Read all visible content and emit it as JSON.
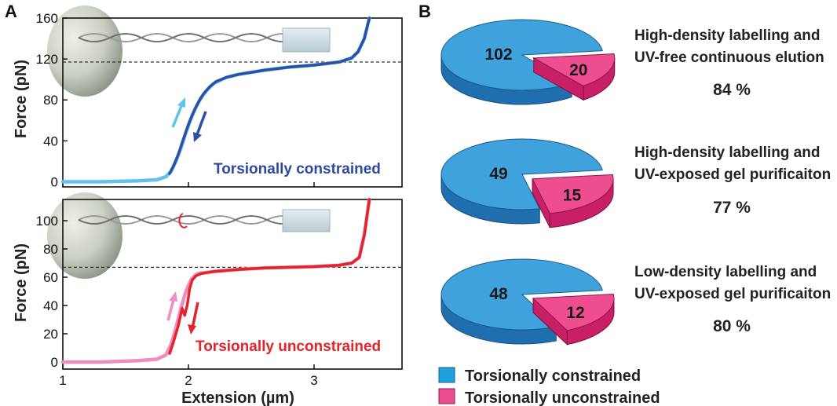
{
  "panel_labels": {
    "a": "A",
    "b": "B"
  },
  "colors": {
    "constrained_pull": "#5ec3ee",
    "constrained_relax": "#2e4fa6",
    "unconstrained_pull": "#f08cc0",
    "unconstrained_relax": "#e3242b",
    "pie_blue_top": "#3fa2dc",
    "pie_blue_side": "#1f6fae",
    "pie_pink_top": "#ee4d90",
    "pie_pink_side": "#c81f66",
    "constrained_text": "#2c4a9e",
    "unconstrained_text": "#e3242b"
  },
  "chart_data": [
    {
      "type": "line",
      "panel": "A-top",
      "xlabel": "",
      "ylabel": "Force (pN)",
      "xlim": [
        1,
        3.7
      ],
      "ylim": [
        -5,
        160
      ],
      "yticks": [
        "0",
        "40",
        "80",
        "120",
        "160"
      ],
      "reference_line_y": 117,
      "annotation": "Torsionally constrained",
      "series": [
        {
          "role": "pull",
          "x": [
            1.0,
            1.3,
            1.6,
            1.75,
            1.82,
            1.86,
            1.9,
            1.94,
            1.98,
            2.02,
            2.06,
            2.1,
            2.15,
            2.2,
            2.3,
            2.4,
            2.6,
            2.8,
            3.0,
            3.2,
            3.3,
            3.35,
            3.4,
            3.44
          ],
          "y": [
            0,
            0,
            1,
            2,
            5,
            10,
            20,
            33,
            48,
            62,
            73,
            82,
            90,
            96,
            102,
            105,
            109,
            112,
            114,
            117,
            121,
            127,
            140,
            160
          ]
        },
        {
          "role": "relax",
          "x": [
            1.85,
            1.88,
            1.92,
            1.96,
            2.0,
            2.04,
            2.08,
            2.12,
            2.17,
            2.22,
            2.3,
            2.4,
            2.6,
            2.8,
            3.0,
            3.2,
            3.3,
            3.35,
            3.4,
            3.44
          ],
          "y": [
            8,
            15,
            27,
            42,
            56,
            68,
            78,
            86,
            93,
            98,
            102,
            105,
            109,
            112,
            114,
            117,
            121,
            127,
            140,
            160
          ]
        }
      ]
    },
    {
      "type": "line",
      "panel": "A-bottom",
      "xlabel": "Extension (µm)",
      "ylabel": "Force (pN)",
      "xlim": [
        1,
        3.7
      ],
      "ylim": [
        -5,
        115
      ],
      "xticks": [
        "1",
        "2",
        "3"
      ],
      "yticks": [
        "0",
        "20",
        "40",
        "60",
        "80",
        "100"
      ],
      "reference_line_y": 67,
      "annotation": "Torsionally unconstrained",
      "series": [
        {
          "role": "pull",
          "x": [
            1.0,
            1.3,
            1.6,
            1.75,
            1.82,
            1.86,
            1.9,
            1.94,
            1.98,
            2.02,
            2.06,
            2.1,
            2.2,
            2.4,
            2.6,
            2.8,
            3.0,
            3.2,
            3.3,
            3.36,
            3.4,
            3.44
          ],
          "y": [
            0,
            0,
            1,
            2,
            5,
            12,
            24,
            38,
            50,
            58,
            62,
            63,
            64,
            65.5,
            66.5,
            67,
            67.5,
            68.5,
            70,
            74,
            90,
            115
          ]
        },
        {
          "role": "relax",
          "x": [
            1.85,
            1.88,
            1.92,
            1.95,
            1.97,
            1.99,
            2.01,
            2.03,
            2.06,
            2.1,
            2.2,
            2.4,
            2.6,
            2.8,
            3.0,
            3.2,
            3.3,
            3.36,
            3.4,
            3.44
          ],
          "y": [
            6,
            14,
            26,
            38,
            33,
            40,
            52,
            58,
            61,
            62.5,
            64,
            65.5,
            66.5,
            67,
            67.5,
            68.5,
            70,
            74,
            90,
            115
          ]
        }
      ]
    },
    {
      "type": "pie",
      "panel": "B-1",
      "categories": [
        "Torsionally constrained",
        "Torsionally unconstrained"
      ],
      "values": [
        102,
        20
      ],
      "title_lines": [
        "High-density labelling and",
        "UV-free continuous elution"
      ],
      "percent_label": "84 %"
    },
    {
      "type": "pie",
      "panel": "B-2",
      "categories": [
        "Torsionally constrained",
        "Torsionally unconstrained"
      ],
      "values": [
        49,
        15
      ],
      "title_lines": [
        "High-density labelling and",
        "UV-exposed gel purificaiton"
      ],
      "percent_label": "77 %"
    },
    {
      "type": "pie",
      "panel": "B-3",
      "categories": [
        "Torsionally constrained",
        "Torsionally unconstrained"
      ],
      "values": [
        48,
        12
      ],
      "title_lines": [
        "Low-density labelling and",
        "UV-exposed gel purificaiton"
      ],
      "percent_label": "80 %"
    }
  ],
  "legend": [
    {
      "label": "Torsionally constrained",
      "color": "#1fa0df"
    },
    {
      "label": "Torsionally unconstrained",
      "color": "#ee4d90"
    }
  ]
}
